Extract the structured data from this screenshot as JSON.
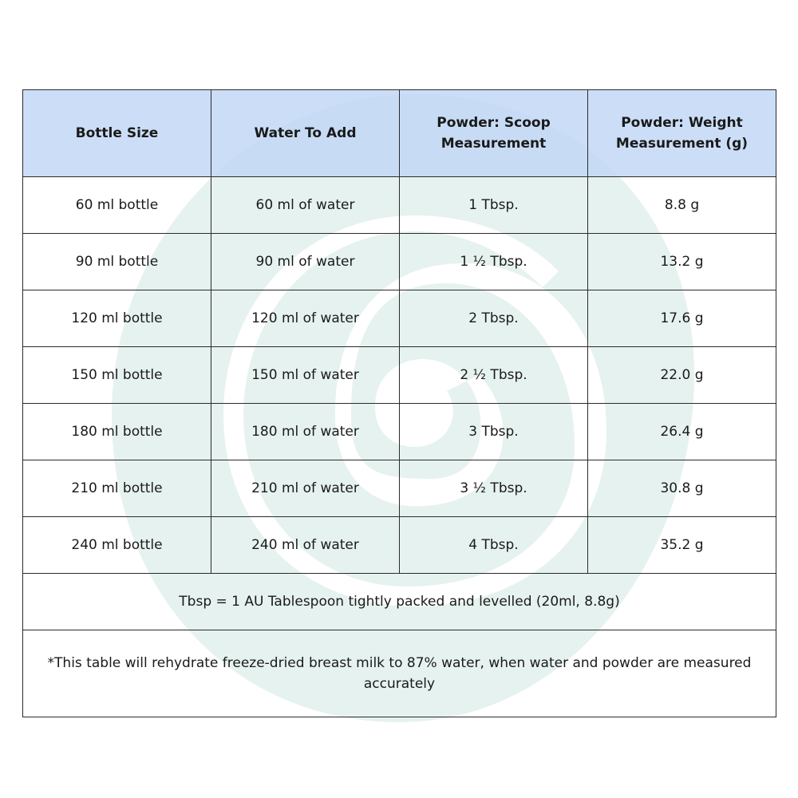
{
  "table": {
    "headers": [
      "Bottle Size",
      "Water To Add",
      "Powder: Scoop Measurement",
      "Powder: Weight Measurement (g)"
    ],
    "rows": [
      [
        "60 ml bottle",
        "60 ml of water",
        "1 Tbsp.",
        "8.8 g"
      ],
      [
        "90 ml bottle",
        "90 ml of water",
        "1 ½ Tbsp.",
        "13.2 g"
      ],
      [
        "120 ml bottle",
        "120 ml of water",
        "2 Tbsp.",
        "17.6 g"
      ],
      [
        "150 ml bottle",
        "150 ml of water",
        "2 ½ Tbsp.",
        "22.0 g"
      ],
      [
        "180 ml bottle",
        "180 ml of water",
        "3 Tbsp.",
        "26.4 g"
      ],
      [
        "210 ml bottle",
        "210 ml of water",
        "3 ½ Tbsp.",
        "30.8 g"
      ],
      [
        "240 ml bottle",
        "240 ml of water",
        "4 Tbsp.",
        "35.2 g"
      ]
    ],
    "note_tbsp": "Tbsp = 1 AU Tablespoon tightly packed and levelled (20ml, 8.8g)",
    "note_accuracy": "*This table will rehydrate freeze-dried breast milk to 87% water, when water and powder are measured accurately"
  },
  "style": {
    "header_bg": "#bed5f5",
    "watermark_color": "#e6f2ef",
    "border_color": "#2b2b2b"
  },
  "watermark": {
    "icon": "swirl-logo-watermark"
  }
}
